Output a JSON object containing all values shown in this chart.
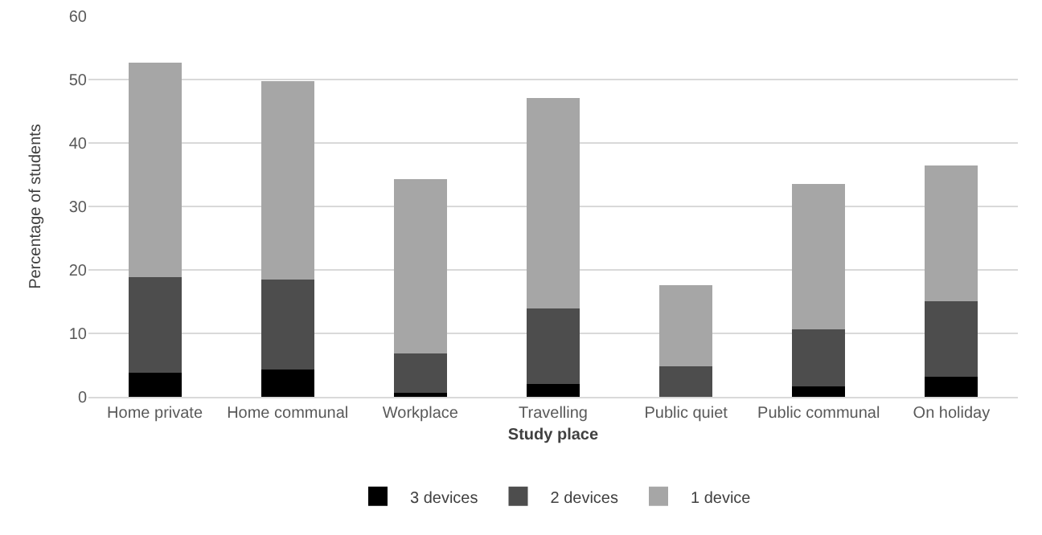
{
  "chart_data": {
    "type": "bar",
    "stacked": true,
    "xlabel": "Study place",
    "ylabel": "Percentage of students",
    "categories": [
      "Home private",
      "Home communal",
      "Workplace",
      "Travelling",
      "Public quiet",
      "Public communal",
      "On holiday"
    ],
    "series": [
      {
        "name": "3 devices",
        "color": "#000000",
        "values": [
          3.8,
          4.3,
          0.6,
          2.0,
          0,
          1.6,
          3.2
        ]
      },
      {
        "name": "2 devices",
        "color": "#4d4d4d",
        "values": [
          15.1,
          14.2,
          6.3,
          11.9,
          4.8,
          9.0,
          11.9
        ]
      },
      {
        "name": "1 device",
        "color": "#a6a6a6",
        "values": [
          33.8,
          31.3,
          27.4,
          33.2,
          12.8,
          22.9,
          21.4
        ]
      }
    ],
    "ylim": [
      0,
      60
    ],
    "yticks": [
      0,
      10,
      20,
      30,
      40,
      50,
      60
    ],
    "grid": "y",
    "legend": "bottom"
  }
}
